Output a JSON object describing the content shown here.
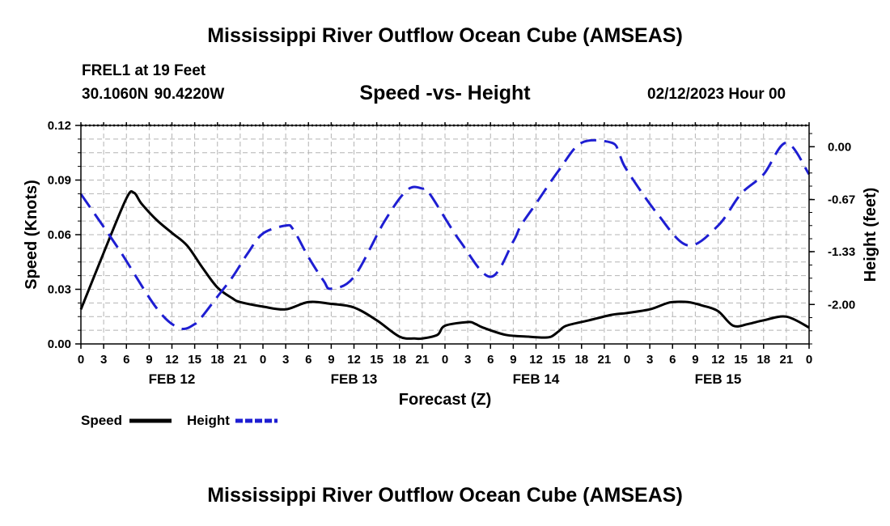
{
  "title": "Mississippi River Outflow Ocean Cube (AMSEAS)",
  "bottom_title": "Mississippi River Outflow Ocean Cube (AMSEAS)",
  "station": "FREL1 at 19 Feet",
  "coordinates": "30.1060N  90.4220W",
  "subtitle": "Speed -vs- Height",
  "datetime": "02/12/2023 Hour 00",
  "chart_data": {
    "type": "line",
    "title": "Speed -vs- Height",
    "xlabel": "Forecast (Z)",
    "ylabel": "Speed (Knots)",
    "y2label": "Height (feet)",
    "x_unit": "forecast hour",
    "xlim": [
      0,
      96
    ],
    "ylim": [
      0,
      0.12
    ],
    "y2lim": [
      -2.5,
      0.27
    ],
    "grid": true,
    "x_tick_labels": [
      "0",
      "3",
      "6",
      "9",
      "12",
      "15",
      "18",
      "21",
      "0",
      "3",
      "6",
      "9",
      "12",
      "15",
      "18",
      "21",
      "0",
      "3",
      "6",
      "9",
      "12",
      "15",
      "18",
      "21",
      "0",
      "3",
      "6",
      "9",
      "12",
      "15",
      "18",
      "21",
      "0"
    ],
    "date_labels": [
      {
        "label": "FEB 12",
        "hour": 12
      },
      {
        "label": "FEB 13",
        "hour": 36
      },
      {
        "label": "FEB 14",
        "hour": 60
      },
      {
        "label": "FEB 15",
        "hour": 84
      }
    ],
    "y_ticks": [
      "0.00",
      "0.03",
      "0.06",
      "0.09",
      "0.12"
    ],
    "y_tick_values": [
      0,
      0.03,
      0.06,
      0.09,
      0.12
    ],
    "y2_ticks": [
      "0.00",
      "-0.67",
      "-1.33",
      "-2.00"
    ],
    "y2_tick_values": [
      0,
      -0.67,
      -1.33,
      -2.0
    ],
    "legend_position": "bottom-left",
    "series": [
      {
        "name": "Speed",
        "axis": "left",
        "color": "#000000",
        "dash": "solid",
        "x": [
          0,
          3,
          6,
          7,
          8,
          10,
          12,
          14,
          16,
          18,
          20,
          21,
          24,
          27,
          30,
          33,
          36,
          39,
          42,
          44,
          45,
          47,
          48,
          51,
          52,
          53,
          56,
          59,
          61,
          62,
          63,
          64,
          67,
          70,
          72,
          75,
          77,
          78,
          80,
          82,
          84,
          86,
          88,
          90,
          93,
          96
        ],
        "y": [
          0.019,
          0.05,
          0.08,
          0.083,
          0.077,
          0.068,
          0.061,
          0.054,
          0.042,
          0.031,
          0.025,
          0.023,
          0.0205,
          0.019,
          0.023,
          0.022,
          0.02,
          0.013,
          0.004,
          0.003,
          0.003,
          0.005,
          0.01,
          0.012,
          0.011,
          0.009,
          0.005,
          0.004,
          0.0035,
          0.004,
          0.007,
          0.01,
          0.013,
          0.016,
          0.017,
          0.019,
          0.022,
          0.023,
          0.023,
          0.021,
          0.018,
          0.01,
          0.011,
          0.013,
          0.015,
          0.009
        ]
      },
      {
        "name": "Height",
        "axis": "right",
        "color": "#1e1ed2",
        "dash": "dashed",
        "x": [
          0,
          5,
          10,
          13,
          15,
          16,
          18,
          20,
          22,
          24,
          27,
          28,
          30,
          32,
          33,
          36,
          40,
          43,
          45,
          46,
          50,
          54,
          57,
          58,
          60,
          63,
          66,
          70,
          71,
          72,
          76,
          80,
          84,
          87,
          90,
          93,
          96
        ],
        "y": [
          -0.6,
          -1.3,
          -2.05,
          -2.3,
          -2.25,
          -2.15,
          -1.9,
          -1.65,
          -1.35,
          -1.1,
          -1.0,
          -1.05,
          -1.4,
          -1.7,
          -1.8,
          -1.65,
          -0.95,
          -0.55,
          -0.53,
          -0.6,
          -1.2,
          -1.65,
          -1.2,
          -1.0,
          -0.72,
          -0.3,
          0.05,
          0.05,
          -0.1,
          -0.3,
          -0.85,
          -1.25,
          -1.0,
          -0.6,
          -0.35,
          0.05,
          -0.35
        ]
      }
    ]
  }
}
